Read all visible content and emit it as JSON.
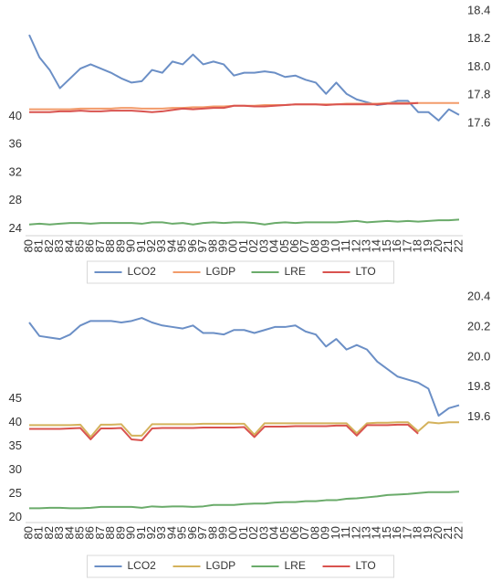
{
  "chart_data": [
    {
      "type": "line",
      "categories": [
        "80",
        "81",
        "82",
        "83",
        "84",
        "85",
        "86",
        "87",
        "88",
        "89",
        "90",
        "91",
        "92",
        "93",
        "94",
        "95",
        "96",
        "97",
        "98",
        "99",
        "00",
        "01",
        "02",
        "03",
        "04",
        "05",
        "06",
        "07",
        "08",
        "09",
        "10",
        "11",
        "12",
        "13",
        "14",
        "15",
        "16",
        "17",
        "18",
        "19",
        "20",
        "21",
        "22"
      ],
      "ylim": [
        23,
        55
      ],
      "yticks": [
        24,
        28,
        32,
        36,
        40
      ],
      "y2lim": [
        16.8,
        18.4
      ],
      "y2ticks": [
        17.6,
        17.8,
        {
          "value": 18,
          "label": "18.0"
        },
        18.2,
        18.4
      ],
      "grid": false,
      "legend": "bottom",
      "series": [
        {
          "name": "LCO2",
          "color": "#6b8fc6",
          "axis": "y2",
          "values": [
            18.23,
            18.07,
            17.98,
            17.85,
            17.92,
            17.99,
            18.02,
            17.99,
            17.96,
            17.92,
            17.89,
            17.9,
            17.98,
            17.96,
            18.04,
            18.02,
            18.09,
            18.02,
            18.04,
            18.02,
            17.94,
            17.96,
            17.96,
            17.97,
            17.96,
            17.93,
            17.94,
            17.91,
            17.89,
            17.81,
            17.89,
            17.81,
            17.77,
            17.75,
            17.73,
            17.74,
            17.76,
            17.76,
            17.68,
            17.68,
            17.62,
            17.7,
            17.66
          ]
        },
        {
          "name": "LGDP",
          "color": "#f29b6a",
          "values": [
            41.0,
            41.0,
            41.0,
            41.0,
            41.0,
            41.1,
            41.1,
            41.1,
            41.1,
            41.2,
            41.2,
            41.1,
            41.1,
            41.1,
            41.2,
            41.2,
            41.3,
            41.3,
            41.4,
            41.4,
            41.5,
            41.5,
            41.5,
            41.6,
            41.6,
            41.6,
            41.7,
            41.7,
            41.7,
            41.7,
            41.7,
            41.8,
            41.8,
            41.8,
            41.8,
            41.9,
            41.9,
            41.9,
            41.9,
            41.9,
            41.9,
            41.9,
            41.9
          ]
        },
        {
          "name": "LRE",
          "color": "#6aab6a",
          "values": [
            24.6,
            24.7,
            24.6,
            24.7,
            24.8,
            24.8,
            24.7,
            24.8,
            24.8,
            24.8,
            24.8,
            24.7,
            24.9,
            24.9,
            24.7,
            24.8,
            24.6,
            24.8,
            24.9,
            24.8,
            24.9,
            24.9,
            24.8,
            24.6,
            24.8,
            24.9,
            24.8,
            24.9,
            24.9,
            24.9,
            24.9,
            25.0,
            25.1,
            24.9,
            25.0,
            25.1,
            25.0,
            25.1,
            25.0,
            25.1,
            25.2,
            25.2,
            25.3
          ]
        },
        {
          "name": "LTO",
          "color": "#d9534f",
          "values": [
            40.6,
            40.6,
            40.6,
            40.7,
            40.7,
            40.8,
            40.7,
            40.7,
            40.8,
            40.8,
            40.8,
            40.7,
            40.6,
            40.7,
            40.9,
            41.1,
            41.0,
            41.1,
            41.2,
            41.2,
            41.5,
            41.5,
            41.4,
            41.4,
            41.5,
            41.6,
            41.7,
            41.7,
            41.7,
            41.6,
            41.7,
            41.7,
            41.7,
            41.7,
            41.7,
            41.8,
            41.8,
            41.8,
            41.9,
            null,
            null,
            null,
            null
          ]
        }
      ]
    },
    {
      "type": "line",
      "categories": [
        "80",
        "81",
        "82",
        "83",
        "84",
        "85",
        "86",
        "87",
        "88",
        "89",
        "90",
        "91",
        "92",
        "93",
        "94",
        "95",
        "96",
        "97",
        "98",
        "99",
        "00",
        "01",
        "02",
        "03",
        "04",
        "05",
        "06",
        "07",
        "08",
        "09",
        "10",
        "11",
        "12",
        "13",
        "14",
        "15",
        "16",
        "17",
        "18",
        "19",
        "20",
        "21",
        "22"
      ],
      "ylim": [
        19,
        66.5
      ],
      "yticks": [
        20,
        25,
        30,
        35,
        40,
        45
      ],
      "y2lim": [
        18.9,
        20.4
      ],
      "y2ticks": [
        19.6,
        19.8,
        {
          "value": 20,
          "label": "20.0"
        },
        20.2,
        20.4
      ],
      "grid": false,
      "legend": "bottom",
      "series": [
        {
          "name": "LCO2",
          "color": "#6b8fc6",
          "axis": "y2",
          "values": [
            20.23,
            20.14,
            20.13,
            20.12,
            20.15,
            20.21,
            20.24,
            20.24,
            20.24,
            20.23,
            20.24,
            20.26,
            20.23,
            20.21,
            20.2,
            20.19,
            20.21,
            20.16,
            20.16,
            20.15,
            20.18,
            20.18,
            20.16,
            20.18,
            20.2,
            20.2,
            20.21,
            20.17,
            20.15,
            20.07,
            20.12,
            20.05,
            20.08,
            20.05,
            19.97,
            19.92,
            19.87,
            19.85,
            19.83,
            19.79,
            19.61,
            19.66,
            19.68
          ]
        },
        {
          "name": "LGDP",
          "color": "#d4b25c",
          "values": [
            39.5,
            39.5,
            39.5,
            39.5,
            39.5,
            39.6,
            37.0,
            39.6,
            39.6,
            39.7,
            37.3,
            37.3,
            39.7,
            39.7,
            39.7,
            39.7,
            39.7,
            39.8,
            39.8,
            39.8,
            39.8,
            39.8,
            37.5,
            39.9,
            39.9,
            39.9,
            39.9,
            39.9,
            39.9,
            39.9,
            39.9,
            39.9,
            37.8,
            39.9,
            40.0,
            40.0,
            40.1,
            40.1,
            38.2,
            40.1,
            39.9,
            40.1,
            40.1
          ]
        },
        {
          "name": "LRE",
          "color": "#6aab6a",
          "values": [
            22.0,
            22.0,
            22.1,
            22.1,
            22.0,
            22.0,
            22.1,
            22.3,
            22.3,
            22.3,
            22.3,
            22.1,
            22.4,
            22.3,
            22.4,
            22.4,
            22.3,
            22.4,
            22.7,
            22.7,
            22.7,
            22.9,
            23.0,
            23.0,
            23.2,
            23.3,
            23.3,
            23.5,
            23.5,
            23.7,
            23.7,
            24.0,
            24.1,
            24.3,
            24.5,
            24.8,
            24.9,
            25.0,
            25.2,
            25.4,
            25.4,
            25.4,
            25.5
          ]
        },
        {
          "name": "LTO",
          "color": "#d9534f",
          "values": [
            38.7,
            38.7,
            38.7,
            38.7,
            38.8,
            38.9,
            36.5,
            38.8,
            38.8,
            38.9,
            36.5,
            36.3,
            38.8,
            38.9,
            38.9,
            38.9,
            38.9,
            39.0,
            39.0,
            39.0,
            39.0,
            39.1,
            37.0,
            39.2,
            39.2,
            39.2,
            39.3,
            39.3,
            39.3,
            39.3,
            39.4,
            39.4,
            37.3,
            39.5,
            39.5,
            39.5,
            39.6,
            39.6,
            37.7,
            null,
            null,
            null,
            null
          ]
        }
      ]
    }
  ]
}
